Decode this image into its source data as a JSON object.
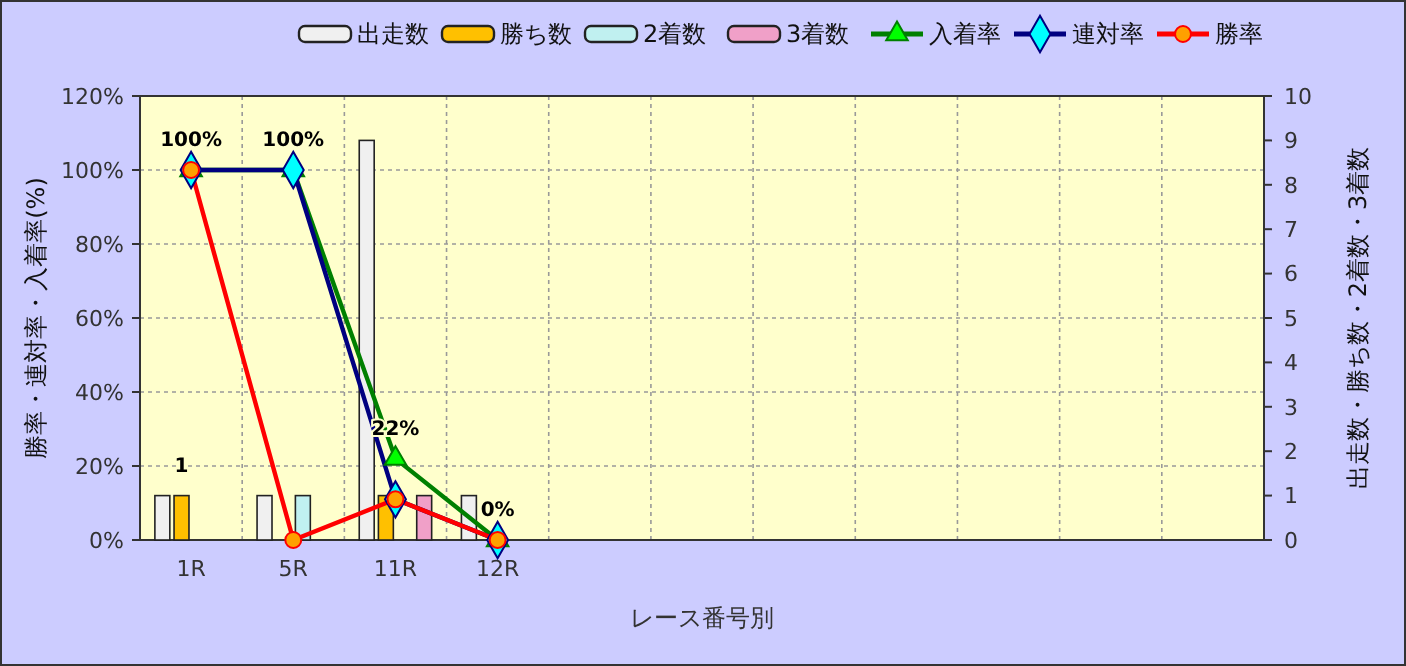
{
  "chart_data": {
    "type": "bar",
    "xlabel": "レース番号別",
    "ylabel": "勝率・連対率・入着率(%)",
    "y2label": "出走数・勝ち数・2着数・3着数",
    "categories": [
      "1R",
      "5R",
      "11R",
      "12R",
      null,
      null,
      null,
      null,
      null,
      null,
      null
    ],
    "ylim": [
      0,
      120
    ],
    "yticks": [
      {
        "value": 0,
        "label": "0%"
      },
      {
        "value": 20,
        "label": "20%"
      },
      {
        "value": 40,
        "label": "40%"
      },
      {
        "value": 60,
        "label": "60%"
      },
      {
        "value": 80,
        "label": "80%"
      },
      {
        "value": 100,
        "label": "100%"
      },
      {
        "value": 120,
        "label": "120%"
      }
    ],
    "y2lim": [
      0,
      10
    ],
    "y2ticks": [
      0,
      1,
      2,
      3,
      4,
      5,
      6,
      7,
      8,
      9,
      10
    ],
    "grid": true,
    "legend": "top",
    "series": [
      {
        "name": "出走数",
        "axis": "y2",
        "color": "#f0f0f0",
        "values": [
          1,
          1,
          9,
          1,
          null,
          null,
          null,
          null,
          null,
          null,
          null
        ]
      },
      {
        "name": "勝ち数",
        "axis": "y2",
        "color": "#ffc000",
        "values": [
          1,
          0,
          1,
          0,
          null,
          null,
          null,
          null,
          null,
          null,
          null
        ],
        "value_labels": [
          "1",
          null,
          null,
          null,
          null,
          null,
          null,
          null,
          null,
          null,
          null
        ]
      },
      {
        "name": "2着数",
        "axis": "y2",
        "color": "#c0f0f0",
        "values": [
          0,
          1,
          0,
          0,
          null,
          null,
          null,
          null,
          null,
          null,
          null
        ]
      },
      {
        "name": "3着数",
        "axis": "y2",
        "color": "#f0a0c8",
        "values": [
          0,
          0,
          1,
          0,
          null,
          null,
          null,
          null,
          null,
          null,
          null
        ]
      },
      {
        "name": "入着率",
        "type": "line",
        "marker": "triangle",
        "color": "#008000",
        "values": [
          100,
          100,
          22,
          0,
          null,
          null,
          null,
          null,
          null,
          null,
          null
        ],
        "value_labels": [
          "100%",
          "100%",
          "22%",
          "0%",
          null,
          null,
          null,
          null,
          null,
          null,
          null
        ]
      },
      {
        "name": "連対率",
        "type": "line",
        "marker": "diamond",
        "color": "#000080",
        "values": [
          100,
          100,
          11,
          0,
          null,
          null,
          null,
          null,
          null,
          null,
          null
        ]
      },
      {
        "name": "勝率",
        "type": "line",
        "marker": "circle",
        "color": "#ff0000",
        "values": [
          100,
          0,
          11,
          0,
          null,
          null,
          null,
          null,
          null,
          null,
          null
        ]
      }
    ]
  }
}
